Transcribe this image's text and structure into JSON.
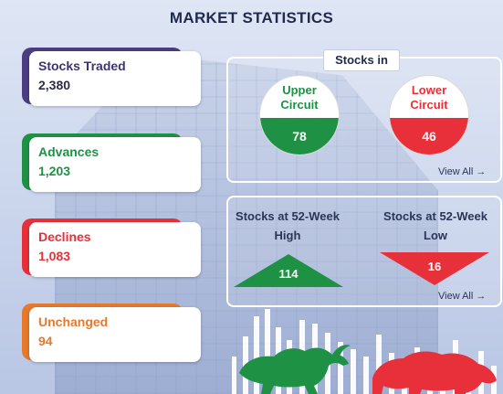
{
  "page": {
    "title": "MARKET STATISTICS"
  },
  "colors": {
    "traded": "#4a3d82",
    "advances": "#1e9145",
    "declines": "#e8303a",
    "unchanged": "#e6792b",
    "title": "#1f2a4d"
  },
  "stats": [
    {
      "id": "traded",
      "label": "Stocks Traded",
      "value": "2,380"
    },
    {
      "id": "advances",
      "label": "Advances",
      "value": "1,203"
    },
    {
      "id": "declines",
      "label": "Declines",
      "value": "1,083"
    },
    {
      "id": "unchanged",
      "label": "Unchanged",
      "value": "94"
    }
  ],
  "circuit": {
    "header": "Stocks in",
    "upper": {
      "label_line1": "Upper",
      "label_line2": "Circuit",
      "value": "78"
    },
    "lower": {
      "label_line1": "Lower",
      "label_line2": "Circuit",
      "value": "46"
    },
    "view_all": "View All →"
  },
  "week52": {
    "high": {
      "label_line1": "Stocks at 52-Week",
      "label_line2": "High",
      "value": "114"
    },
    "low": {
      "label_line1": "Stocks at 52-Week",
      "label_line2": "Low",
      "value": "16"
    },
    "view_all": "View All →"
  },
  "icons": {
    "bull": "bull-icon",
    "bear": "bear-icon",
    "view_all_arrow": "arrow-right-icon"
  }
}
